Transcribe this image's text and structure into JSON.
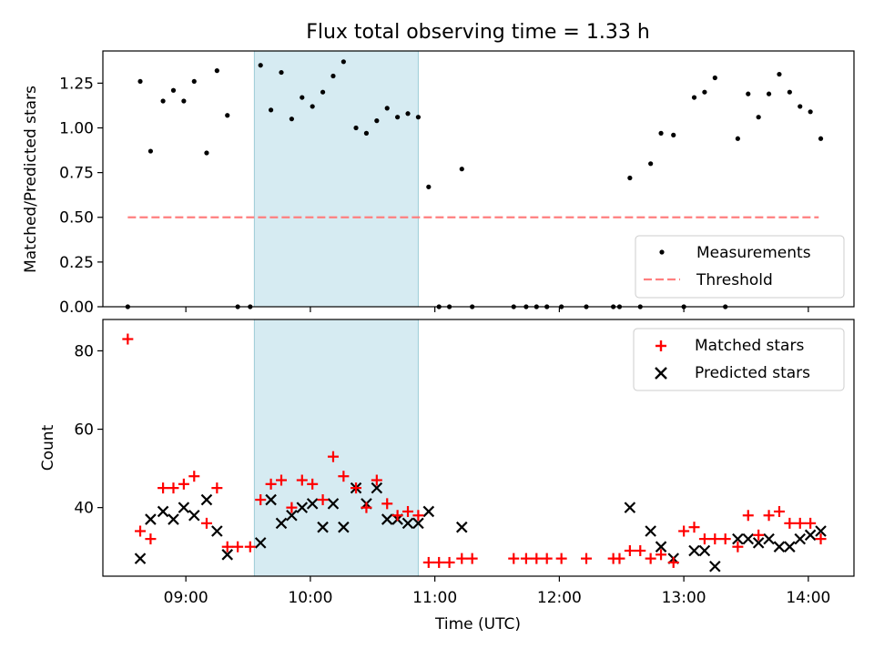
{
  "title": "Flux total observing time = 1.33 h",
  "chart_data": [
    {
      "type": "scatter",
      "panel": "top",
      "xlabel": "",
      "ylabel": "Matched/Predicted stars",
      "xlim": [
        "08:20",
        "14:22"
      ],
      "ylim": [
        0,
        1.43
      ],
      "yticks": [
        0.0,
        0.25,
        0.5,
        0.75,
        1.0,
        1.25
      ],
      "ytick_labels": [
        "0.00",
        "0.25",
        "0.50",
        "0.75",
        "1.00",
        "1.25"
      ],
      "grid": false,
      "legend_position": "lower-right",
      "highlight_span": [
        "09:33",
        "10:52"
      ],
      "threshold": {
        "name": "Threshold",
        "y": 0.5,
        "x": [
          "08:32",
          "14:05"
        ],
        "color": "#ff7f7f",
        "style": "dashed"
      },
      "series": [
        {
          "name": "Measurements",
          "color": "#000000",
          "marker": "dot",
          "points": [
            [
              "08:32",
              0
            ],
            [
              "08:38",
              1.26
            ],
            [
              "08:43",
              0.87
            ],
            [
              "08:49",
              1.15
            ],
            [
              "08:54",
              1.21
            ],
            [
              "08:59",
              1.15
            ],
            [
              "09:04",
              1.26
            ],
            [
              "09:10",
              0.86
            ],
            [
              "09:15",
              1.32
            ],
            [
              "09:20",
              1.07
            ],
            [
              "09:25",
              0
            ],
            [
              "09:31",
              0
            ],
            [
              "09:36",
              1.35
            ],
            [
              "09:41",
              1.1
            ],
            [
              "09:46",
              1.31
            ],
            [
              "09:51",
              1.05
            ],
            [
              "09:56",
              1.17
            ],
            [
              "10:01",
              1.12
            ],
            [
              "10:06",
              1.2
            ],
            [
              "10:11",
              1.29
            ],
            [
              "10:16",
              1.37
            ],
            [
              "10:22",
              1.0
            ],
            [
              "10:27",
              0.97
            ],
            [
              "10:32",
              1.04
            ],
            [
              "10:37",
              1.11
            ],
            [
              "10:42",
              1.06
            ],
            [
              "10:47",
              1.08
            ],
            [
              "10:52",
              1.06
            ],
            [
              "10:57",
              0.67
            ],
            [
              "11:02",
              0
            ],
            [
              "11:07",
              0
            ],
            [
              "11:13",
              0.77
            ],
            [
              "11:18",
              0
            ],
            [
              "11:38",
              0
            ],
            [
              "11:44",
              0
            ],
            [
              "11:49",
              0
            ],
            [
              "11:54",
              0
            ],
            [
              "12:01",
              0
            ],
            [
              "12:13",
              0
            ],
            [
              "12:26",
              0
            ],
            [
              "12:29",
              0
            ],
            [
              "12:34",
              0.72
            ],
            [
              "12:39",
              0
            ],
            [
              "12:44",
              0.8
            ],
            [
              "12:49",
              0.97
            ],
            [
              "12:55",
              0.96
            ],
            [
              "13:00",
              0
            ],
            [
              "13:05",
              1.17
            ],
            [
              "13:10",
              1.2
            ],
            [
              "13:15",
              1.28
            ],
            [
              "13:20",
              0
            ],
            [
              "13:26",
              0.94
            ],
            [
              "13:31",
              1.19
            ],
            [
              "13:36",
              1.06
            ],
            [
              "13:41",
              1.19
            ],
            [
              "13:46",
              1.3
            ],
            [
              "13:51",
              1.2
            ],
            [
              "13:56",
              1.12
            ],
            [
              "14:01",
              1.09
            ],
            [
              "14:06",
              0.94
            ]
          ]
        }
      ]
    },
    {
      "type": "scatter",
      "panel": "bottom",
      "xlabel": "Time (UTC)",
      "ylabel": "Count",
      "xlim": [
        "08:20",
        "14:22"
      ],
      "xticks": [
        "09:00",
        "10:00",
        "11:00",
        "12:00",
        "13:00",
        "14:00"
      ],
      "ylim": [
        22.5,
        88
      ],
      "yticks": [
        40,
        60,
        80
      ],
      "grid": false,
      "legend_position": "upper-right",
      "highlight_span": [
        "09:33",
        "10:52"
      ],
      "series": [
        {
          "name": "Matched stars",
          "color": "#ff0000",
          "marker": "plus",
          "points": [
            [
              "08:32",
              83
            ],
            [
              "08:38",
              34
            ],
            [
              "08:43",
              32
            ],
            [
              "08:49",
              45
            ],
            [
              "08:54",
              45
            ],
            [
              "08:59",
              46
            ],
            [
              "09:04",
              48
            ],
            [
              "09:10",
              36
            ],
            [
              "09:15",
              45
            ],
            [
              "09:20",
              30
            ],
            [
              "09:25",
              30
            ],
            [
              "09:31",
              30
            ],
            [
              "09:36",
              42
            ],
            [
              "09:41",
              46
            ],
            [
              "09:46",
              47
            ],
            [
              "09:51",
              40
            ],
            [
              "09:56",
              47
            ],
            [
              "10:01",
              46
            ],
            [
              "10:06",
              42
            ],
            [
              "10:11",
              53
            ],
            [
              "10:16",
              48
            ],
            [
              "10:22",
              45
            ],
            [
              "10:27",
              40
            ],
            [
              "10:32",
              47
            ],
            [
              "10:37",
              41
            ],
            [
              "10:42",
              38
            ],
            [
              "10:47",
              39
            ],
            [
              "10:52",
              38
            ],
            [
              "10:57",
              26
            ],
            [
              "11:02",
              26
            ],
            [
              "11:07",
              26
            ],
            [
              "11:13",
              27
            ],
            [
              "11:18",
              27
            ],
            [
              "11:38",
              27
            ],
            [
              "11:44",
              27
            ],
            [
              "11:49",
              27
            ],
            [
              "11:54",
              27
            ],
            [
              "12:01",
              27
            ],
            [
              "12:13",
              27
            ],
            [
              "12:26",
              27
            ],
            [
              "12:29",
              27
            ],
            [
              "12:34",
              29
            ],
            [
              "12:39",
              29
            ],
            [
              "12:44",
              27
            ],
            [
              "12:49",
              28
            ],
            [
              "12:55",
              26
            ],
            [
              "13:00",
              34
            ],
            [
              "13:05",
              35
            ],
            [
              "13:10",
              32
            ],
            [
              "13:15",
              32
            ],
            [
              "13:20",
              32
            ],
            [
              "13:26",
              30
            ],
            [
              "13:31",
              38
            ],
            [
              "13:36",
              33
            ],
            [
              "13:41",
              38
            ],
            [
              "13:46",
              39
            ],
            [
              "13:51",
              36
            ],
            [
              "13:56",
              36
            ],
            [
              "14:01",
              36
            ],
            [
              "14:06",
              32
            ]
          ]
        },
        {
          "name": "Predicted stars",
          "color": "#000000",
          "marker": "x",
          "points": [
            [
              "08:38",
              27
            ],
            [
              "08:43",
              37
            ],
            [
              "08:49",
              39
            ],
            [
              "08:54",
              37
            ],
            [
              "08:59",
              40
            ],
            [
              "09:04",
              38
            ],
            [
              "09:10",
              42
            ],
            [
              "09:15",
              34
            ],
            [
              "09:20",
              28
            ],
            [
              "09:36",
              31
            ],
            [
              "09:41",
              42
            ],
            [
              "09:46",
              36
            ],
            [
              "09:51",
              38
            ],
            [
              "09:56",
              40
            ],
            [
              "10:01",
              41
            ],
            [
              "10:06",
              35
            ],
            [
              "10:11",
              41
            ],
            [
              "10:16",
              35
            ],
            [
              "10:22",
              45
            ],
            [
              "10:27",
              41
            ],
            [
              "10:32",
              45
            ],
            [
              "10:37",
              37
            ],
            [
              "10:42",
              37
            ],
            [
              "10:47",
              36
            ],
            [
              "10:52",
              36
            ],
            [
              "10:57",
              39
            ],
            [
              "11:13",
              35
            ],
            [
              "12:34",
              40
            ],
            [
              "12:44",
              34
            ],
            [
              "12:49",
              30
            ],
            [
              "12:55",
              27
            ],
            [
              "13:05",
              29
            ],
            [
              "13:10",
              29
            ],
            [
              "13:15",
              25
            ],
            [
              "13:26",
              32
            ],
            [
              "13:31",
              32
            ],
            [
              "13:36",
              31
            ],
            [
              "13:41",
              32
            ],
            [
              "13:46",
              30
            ],
            [
              "13:51",
              30
            ],
            [
              "13:56",
              32
            ],
            [
              "14:01",
              33
            ],
            [
              "14:06",
              34
            ]
          ]
        }
      ]
    }
  ]
}
